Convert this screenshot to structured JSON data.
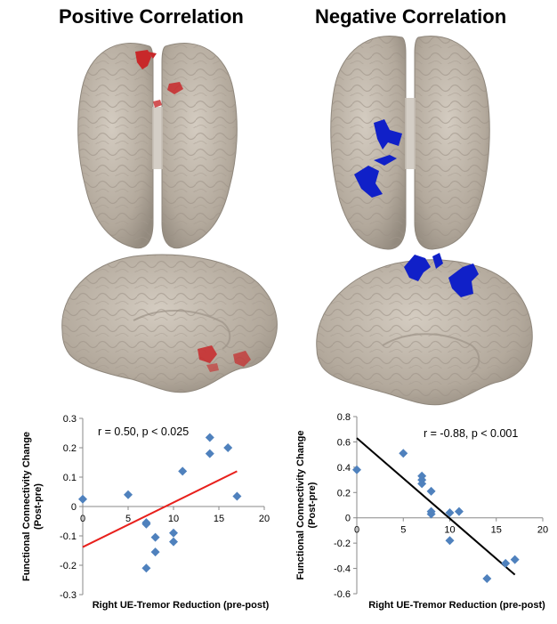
{
  "panels": {
    "left_title": "Positive Correlation",
    "right_title": "Negative Correlation"
  },
  "colors": {
    "brain": "#b8aea2",
    "brain_edge": "#8f877c",
    "positive_cluster": "#c8282a",
    "negative_cluster": "#1020c8",
    "marker": "#4f81bd",
    "fit_positive": "#e8201c",
    "fit_negative": "#000000"
  },
  "chart_data": [
    {
      "type": "scatter",
      "title": "",
      "annotation": "r = 0.50, p < 0.025",
      "xlabel": "Right UE-Tremor Reduction (pre-post)",
      "ylabel": "Functional Connectivity Change (Post-pre)",
      "xlim": [
        0,
        20
      ],
      "ylim": [
        -0.3,
        0.3
      ],
      "xticks": [
        0,
        5,
        10,
        15,
        20
      ],
      "yticks": [
        -0.3,
        -0.2,
        -0.1,
        0,
        0.1,
        0.2,
        0.3
      ],
      "points": [
        [
          0,
          0.025
        ],
        [
          5,
          0.04
        ],
        [
          7,
          -0.06
        ],
        [
          7,
          -0.055
        ],
        [
          7,
          -0.21
        ],
        [
          8,
          -0.105
        ],
        [
          8,
          -0.155
        ],
        [
          10,
          -0.09
        ],
        [
          10,
          -0.12
        ],
        [
          11,
          0.12
        ],
        [
          14,
          0.235
        ],
        [
          14,
          0.18
        ],
        [
          16,
          0.2
        ],
        [
          17,
          0.035
        ]
      ],
      "fit": {
        "x": [
          0,
          17
        ],
        "y": [
          -0.138,
          0.12
        ]
      }
    },
    {
      "type": "scatter",
      "title": "",
      "annotation": "r = -0.88, p < 0.001",
      "xlabel": "Right UE-Tremor Reduction (pre-post)",
      "ylabel": "Functional Connectivity Change (Post-pre)",
      "xlim": [
        0,
        20
      ],
      "ylim": [
        -0.6,
        0.8
      ],
      "xticks": [
        0,
        5,
        10,
        15,
        20
      ],
      "yticks": [
        -0.6,
        -0.4,
        -0.2,
        0,
        0.2,
        0.4,
        0.6,
        0.8
      ],
      "points": [
        [
          0,
          0.38
        ],
        [
          5,
          0.51
        ],
        [
          7,
          0.33
        ],
        [
          7,
          0.3
        ],
        [
          7,
          0.27
        ],
        [
          8,
          0.21
        ],
        [
          8,
          0.05
        ],
        [
          8,
          0.03
        ],
        [
          10,
          0.04
        ],
        [
          10,
          -0.18
        ],
        [
          11,
          0.05
        ],
        [
          14,
          -0.48
        ],
        [
          16,
          -0.36
        ],
        [
          17,
          -0.33
        ]
      ],
      "fit": {
        "x": [
          0,
          17
        ],
        "y": [
          0.63,
          -0.45
        ]
      }
    }
  ]
}
